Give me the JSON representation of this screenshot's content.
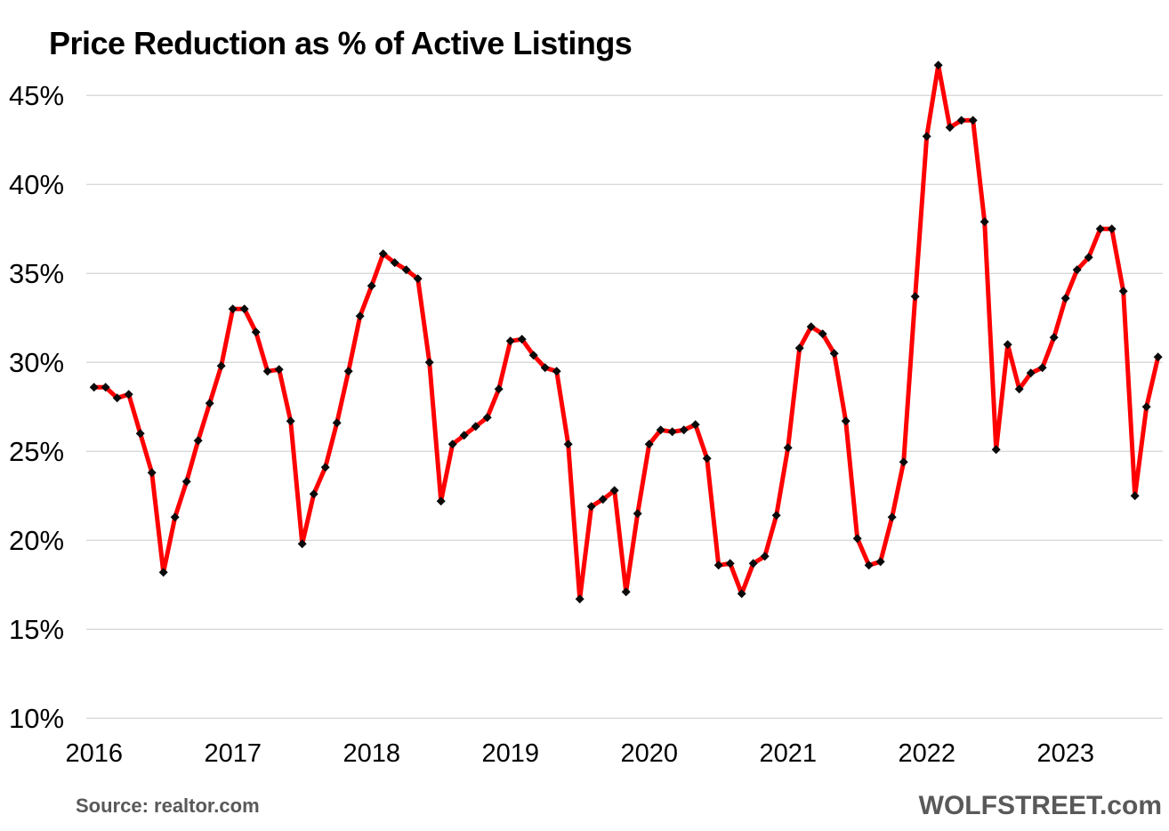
{
  "title": "Price Reduction as % of Active Listings",
  "source_note": "Source: realtor.com",
  "watermark": "WOLFSTREET.com",
  "colors": {
    "line": "#fe0000",
    "marker": "#0a0a0a",
    "grid": "#d9d9d9",
    "tick_text": "#000000",
    "muted_text": "#595959",
    "background": "#ffffff"
  },
  "chart_data": {
    "type": "line",
    "title": "Price Reduction as % of Active Listings",
    "frequency": "monthly",
    "unit": "%",
    "x_start": "2016-01",
    "x_end": "2023-09",
    "grid": "horizontal-only",
    "legend": "none",
    "marker_shape": "diamond",
    "y_axis": {
      "min": 10,
      "max": 45,
      "step": 5,
      "tick_suffix": "%"
    },
    "x_axis": {
      "tick_labels": [
        "2016",
        "2017",
        "2018",
        "2019",
        "2020",
        "2021",
        "2022",
        "2023"
      ]
    },
    "series": [
      {
        "name": "Price reduction as % of active listings",
        "values_by_year": [
          {
            "year": 2016,
            "values": [
              28.6,
              28.6,
              28.0,
              28.2,
              26.0,
              23.8,
              18.2,
              21.3,
              23.3,
              25.6,
              27.7,
              29.8
            ]
          },
          {
            "year": 2017,
            "values": [
              33.0,
              33.0,
              31.7,
              29.5,
              29.6,
              26.7,
              19.8,
              22.6,
              24.1,
              26.6,
              29.5,
              32.6
            ]
          },
          {
            "year": 2018,
            "values": [
              34.3,
              36.1,
              35.6,
              35.2,
              34.7,
              30.0,
              22.2,
              25.4,
              25.9,
              26.4,
              26.9,
              28.5
            ]
          },
          {
            "year": 2019,
            "values": [
              31.2,
              31.3,
              30.4,
              29.7,
              29.5,
              25.4,
              16.7,
              21.9,
              22.3,
              22.8,
              17.1,
              21.5
            ]
          },
          {
            "year": 2020,
            "values": [
              25.4,
              26.2,
              26.1,
              26.2,
              26.5,
              24.6,
              18.6,
              18.7,
              17.0,
              18.7,
              19.1,
              21.4
            ]
          },
          {
            "year": 2021,
            "values": [
              25.2,
              30.8,
              32.0,
              31.6,
              30.5,
              26.7,
              20.1,
              18.6,
              18.8,
              21.3,
              24.4,
              33.7
            ]
          },
          {
            "year": 2022,
            "values": [
              42.7,
              46.7,
              43.2,
              43.6,
              43.6,
              37.9,
              25.1,
              31.0,
              28.5,
              29.4,
              29.7,
              31.4
            ]
          },
          {
            "year": 2023,
            "values": [
              33.6,
              35.2,
              35.9,
              37.5,
              37.5,
              34.0,
              22.5,
              27.5,
              30.3
            ]
          }
        ]
      }
    ]
  }
}
